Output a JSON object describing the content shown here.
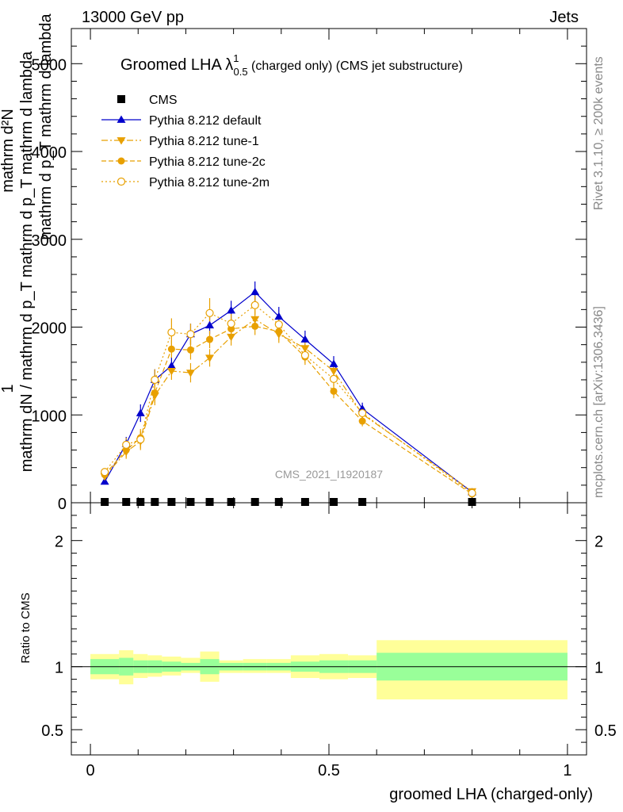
{
  "header": {
    "left": "13000 GeV pp",
    "right": "Jets"
  },
  "side_text": {
    "rivet": "Rivet 3.1.10, ≥ 200k events",
    "mcplots": "mcplots.cern.ch [arXiv:1306.3436]"
  },
  "watermark": "CMS_2021_I1920187",
  "title": {
    "main": "Groomed LHA ",
    "lambda": "λ",
    "sup": "1",
    "sub": "0.5",
    "rest": " (charged only) (CMS jet substructure)"
  },
  "y_title": {
    "numerator": "1",
    "denominator": "mathrm dN / mathrm d p_T mathrm d p_T mathrm d lambda",
    "upper": "mathrm d²N",
    "upper2": "mathrm d p_T mathrm d lambda"
  },
  "ratio_ylabel": "Ratio to CMS",
  "colors": {
    "cms": "#000000",
    "default": "#0000cc",
    "tune": "#e8a000",
    "band_inner": "#99ff99",
    "band_outer": "#ffff99"
  },
  "chart_data": {
    "type": "line",
    "title": "Groomed LHA λ^1_0.5 (charged only) (CMS jet substructure)",
    "xlabel": "groomed LHA (charged-only)",
    "ylabel": "1 / (dN/dp_T) d²N / dp_T dλ",
    "xlim": [
      -0.04,
      1.04
    ],
    "ylim": [
      0,
      5400
    ],
    "x_ticks": [
      0,
      0.5,
      1
    ],
    "x_tick_labels": [
      "0",
      "0.5",
      "1"
    ],
    "y_ticks": [
      0,
      1000,
      2000,
      3000,
      4000,
      5000
    ],
    "y_tick_labels": [
      "0",
      "1000",
      "2000",
      "3000",
      "4000",
      "5000"
    ],
    "x": [
      0.03,
      0.075,
      0.105,
      0.135,
      0.17,
      0.21,
      0.25,
      0.295,
      0.345,
      0.395,
      0.45,
      0.51,
      0.57,
      0.8
    ],
    "series": [
      {
        "name": "CMS",
        "marker": "square",
        "values": [
          0,
          0,
          0,
          0,
          0,
          0,
          0,
          0,
          0,
          0,
          0,
          0,
          0,
          0
        ]
      },
      {
        "name": "Pythia 8.212 default",
        "marker": "triangle-up",
        "style": "solid",
        "values": [
          240,
          670,
          1020,
          1400,
          1560,
          1920,
          2020,
          2190,
          2400,
          2120,
          1860,
          1580,
          1070,
          120
        ],
        "errors": [
          30,
          80,
          100,
          120,
          100,
          120,
          100,
          110,
          120,
          110,
          100,
          90,
          70,
          20
        ]
      },
      {
        "name": "Pythia 8.212 tune-1",
        "marker": "triangle-down",
        "style": "dashdot",
        "values": [
          300,
          580,
          700,
          1220,
          1500,
          1480,
          1650,
          1890,
          2090,
          1920,
          1760,
          1500,
          1010,
          130
        ],
        "errors": [
          30,
          80,
          100,
          110,
          100,
          110,
          100,
          100,
          110,
          100,
          90,
          80,
          60,
          20
        ]
      },
      {
        "name": "Pythia 8.212 tune-2c",
        "marker": "circle",
        "style": "dashed",
        "values": [
          320,
          600,
          740,
          1250,
          1750,
          1740,
          1860,
          1980,
          2010,
          1950,
          1660,
          1270,
          930,
          100
        ],
        "errors": [
          30,
          80,
          100,
          110,
          100,
          110,
          100,
          100,
          100,
          100,
          90,
          80,
          60,
          20
        ]
      },
      {
        "name": "Pythia 8.212 tune-2m",
        "marker": "circle-open",
        "style": "dotted",
        "values": [
          350,
          660,
          720,
          1400,
          1940,
          1920,
          2160,
          2040,
          2250,
          2030,
          1680,
          1410,
          1020,
          110
        ],
        "errors": [
          30,
          80,
          100,
          120,
          160,
          120,
          170,
          110,
          110,
          100,
          90,
          80,
          60,
          20
        ]
      }
    ],
    "ratio": {
      "ylabel": "Ratio to CMS",
      "ylim": [
        0.3,
        2.3
      ],
      "y_ticks": [
        0.5,
        1,
        2
      ],
      "y_tick_labels": [
        "0.5",
        "1",
        "2"
      ],
      "bins": [
        {
          "lo": 0.0,
          "hi": 0.06,
          "inner": [
            0.94,
            1.06
          ],
          "outer": [
            0.9,
            1.1
          ]
        },
        {
          "lo": 0.06,
          "hi": 0.09,
          "inner": [
            0.93,
            1.07
          ],
          "outer": [
            0.86,
            1.13
          ]
        },
        {
          "lo": 0.09,
          "hi": 0.12,
          "inner": [
            0.95,
            1.05
          ],
          "outer": [
            0.91,
            1.1
          ]
        },
        {
          "lo": 0.12,
          "hi": 0.15,
          "inner": [
            0.95,
            1.05
          ],
          "outer": [
            0.92,
            1.09
          ]
        },
        {
          "lo": 0.15,
          "hi": 0.19,
          "inner": [
            0.96,
            1.04
          ],
          "outer": [
            0.93,
            1.08
          ]
        },
        {
          "lo": 0.19,
          "hi": 0.23,
          "inner": [
            0.97,
            1.03
          ],
          "outer": [
            0.95,
            1.07
          ]
        },
        {
          "lo": 0.23,
          "hi": 0.27,
          "inner": [
            0.94,
            1.06
          ],
          "outer": [
            0.88,
            1.12
          ]
        },
        {
          "lo": 0.27,
          "hi": 0.32,
          "inner": [
            0.97,
            1.03
          ],
          "outer": [
            0.95,
            1.05
          ]
        },
        {
          "lo": 0.32,
          "hi": 0.37,
          "inner": [
            0.97,
            1.03
          ],
          "outer": [
            0.95,
            1.06
          ]
        },
        {
          "lo": 0.37,
          "hi": 0.42,
          "inner": [
            0.97,
            1.03
          ],
          "outer": [
            0.95,
            1.06
          ]
        },
        {
          "lo": 0.42,
          "hi": 0.48,
          "inner": [
            0.96,
            1.04
          ],
          "outer": [
            0.91,
            1.09
          ]
        },
        {
          "lo": 0.48,
          "hi": 0.54,
          "inner": [
            0.95,
            1.05
          ],
          "outer": [
            0.9,
            1.1
          ]
        },
        {
          "lo": 0.54,
          "hi": 0.6,
          "inner": [
            0.95,
            1.05
          ],
          "outer": [
            0.91,
            1.09
          ]
        },
        {
          "lo": 0.6,
          "hi": 1.0,
          "inner": [
            0.89,
            1.11
          ],
          "outer": [
            0.74,
            1.21
          ]
        }
      ]
    }
  }
}
